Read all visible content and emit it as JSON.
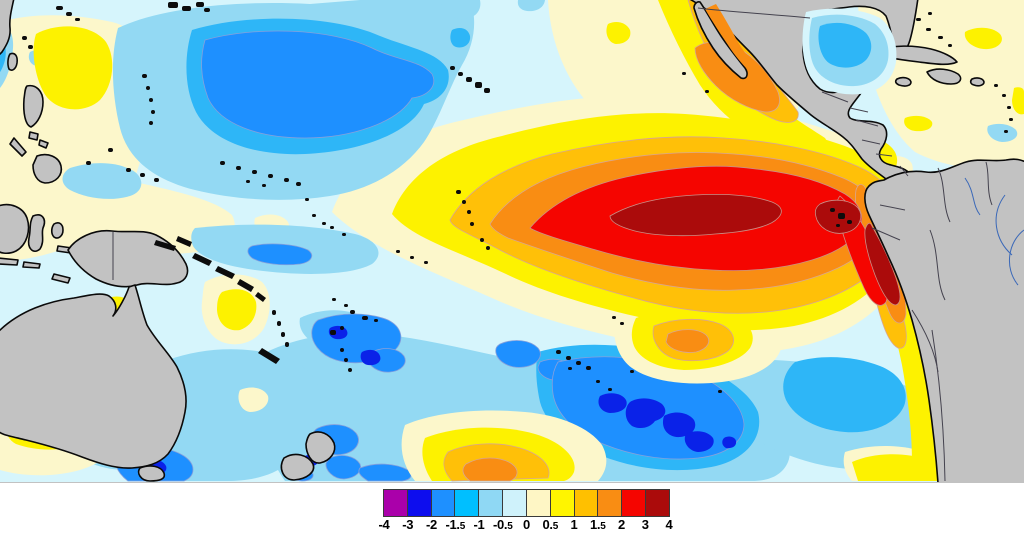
{
  "figure": {
    "kind": "sea-surface-temperature-anomaly-map",
    "region": "Pacific Ocean"
  },
  "palette": {
    "palecyan": "#D6F5FC",
    "cream": "#FCF7CB",
    "lightblue": "#93D9F3",
    "cyan": "#2EB6F7",
    "dodger": "#1E90FF",
    "navy": "#0A22E8",
    "yellow": "#FDF200",
    "amber": "#FFC008",
    "orange": "#F98D13",
    "red": "#F50500",
    "darkred": "#AB0B0B",
    "land": "#C2C2C2",
    "coastline": "#0A0A0A",
    "country_border": "#44424E",
    "river": "#3A68B8",
    "island": "#0C0C0C",
    "background": "#FFFFFF"
  },
  "colorbar": {
    "cell_colors": [
      "#AA00AA",
      "#0D0DEE",
      "#1E90FF",
      "#00BFFF",
      "#8FD8F4",
      "#CFF2FB",
      "#FEF6C5",
      "#FFF500",
      "#FFC000",
      "#F98D13",
      "#F50500",
      "#AB0B0B"
    ],
    "tick_labels": [
      "-4",
      "-3",
      "-2",
      "-1.5",
      "-1",
      "-0.5",
      "0",
      "0.5",
      "1",
      "1.5",
      "2",
      "3",
      "4"
    ]
  }
}
